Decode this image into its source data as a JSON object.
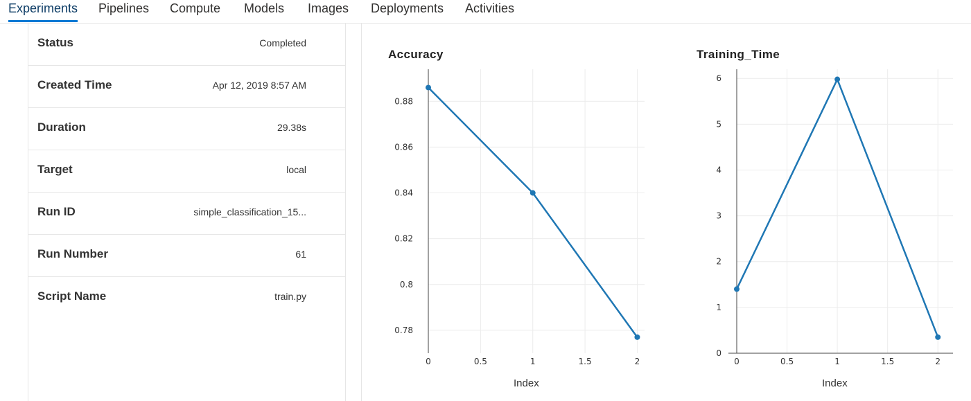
{
  "tabs": [
    {
      "label": "Experiments",
      "active": true
    },
    {
      "label": "Pipelines",
      "active": false
    },
    {
      "label": "Compute",
      "active": false
    },
    {
      "label": "Models",
      "active": false
    },
    {
      "label": "Images",
      "active": false
    },
    {
      "label": "Deployments",
      "active": false
    },
    {
      "label": "Activities",
      "active": false
    }
  ],
  "details": [
    {
      "label": "Status",
      "value": "Completed"
    },
    {
      "label": "Created Time",
      "value": "Apr 12, 2019 8:57 AM"
    },
    {
      "label": "Duration",
      "value": "29.38s"
    },
    {
      "label": "Target",
      "value": "local"
    },
    {
      "label": "Run ID",
      "value": "simple_classification_15..."
    },
    {
      "label": "Run Number",
      "value": "61"
    },
    {
      "label": "Script Name",
      "value": "train.py"
    }
  ],
  "colors": {
    "accent": "#0078d4",
    "series": "#1f77b4",
    "grid": "#ececec"
  },
  "chart_data": [
    {
      "type": "line",
      "title": "Accuracy",
      "xlabel": "Index",
      "ylabel": "",
      "x": [
        0,
        1,
        2
      ],
      "values": [
        0.886,
        0.84,
        0.777
      ],
      "xlim": [
        0,
        2.07
      ],
      "ylim": [
        0.77,
        0.894
      ],
      "xticks": [
        0,
        0.5,
        1,
        1.5,
        2
      ],
      "xtick_labels": [
        "0",
        "0.5",
        "1",
        "1.5",
        "2"
      ],
      "yticks": [
        0.78,
        0.8,
        0.82,
        0.84,
        0.86,
        0.88
      ],
      "ytick_labels": [
        "0.78",
        "0.8",
        "0.82",
        "0.84",
        "0.86",
        "0.88"
      ],
      "grid": true
    },
    {
      "type": "line",
      "title": "Training_Time",
      "xlabel": "Index",
      "ylabel": "",
      "x": [
        0,
        1,
        2
      ],
      "values": [
        1.4,
        5.98,
        0.35
      ],
      "xlim": [
        0,
        2.15
      ],
      "ylim": [
        0,
        6.2
      ],
      "xticks": [
        0,
        0.5,
        1,
        1.5,
        2
      ],
      "xtick_labels": [
        "0",
        "0.5",
        "1",
        "1.5",
        "2"
      ],
      "yticks": [
        0,
        1,
        2,
        3,
        4,
        5,
        6
      ],
      "ytick_labels": [
        "0",
        "1",
        "2",
        "3",
        "4",
        "5",
        "6"
      ],
      "grid": true
    }
  ]
}
